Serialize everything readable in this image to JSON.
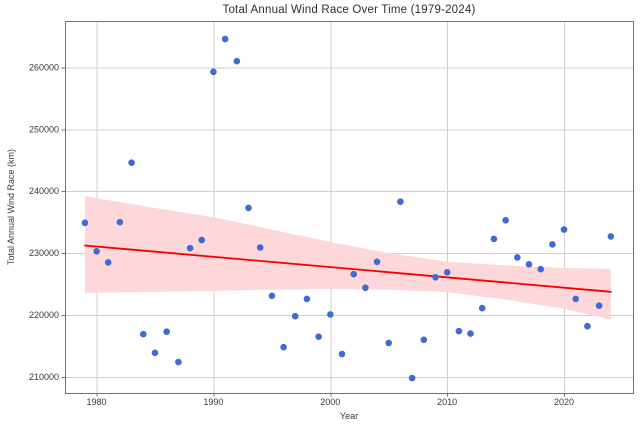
{
  "chart_data": {
    "type": "scatter",
    "title": "Total Annual Wind Race Over Time (1979-2024)",
    "xlabel": "Year",
    "ylabel": "Total Annual Wind Race (km)",
    "xlim": [
      1977.3,
      2025.9
    ],
    "ylim": [
      207400,
      267500
    ],
    "xticks": [
      1980,
      1990,
      2000,
      2010,
      2020
    ],
    "yticks": [
      210000,
      220000,
      230000,
      240000,
      250000,
      260000
    ],
    "grid": true,
    "legend": "none",
    "series": [
      {
        "name": "annual-total-points",
        "type": "scatter",
        "x": [
          1979,
          1980,
          1981,
          1982,
          1983,
          1984,
          1985,
          1986,
          1987,
          1988,
          1989,
          1990,
          1991,
          1992,
          1993,
          1994,
          1995,
          1996,
          1997,
          1998,
          1999,
          2000,
          2001,
          2002,
          2003,
          2004,
          2005,
          2006,
          2007,
          2008,
          2009,
          2010,
          2011,
          2012,
          2013,
          2014,
          2015,
          2016,
          2017,
          2018,
          2019,
          2020,
          2021,
          2022,
          2023,
          2024
        ],
        "y": [
          234900,
          230300,
          228500,
          235000,
          244600,
          216900,
          213900,
          217300,
          212400,
          230800,
          232100,
          259300,
          264600,
          261000,
          237300,
          230900,
          223100,
          214800,
          219800,
          222600,
          216500,
          220100,
          213700,
          226600,
          224400,
          228600,
          215500,
          238300,
          209800,
          216000,
          226100,
          226900,
          217400,
          217000,
          221100,
          232300,
          235300,
          229300,
          228200,
          227400,
          231400,
          233800,
          222600,
          218200,
          221500,
          232700
        ]
      },
      {
        "name": "linear-trend",
        "type": "line",
        "x": [
          1979,
          2024
        ],
        "y": [
          231230,
          223750
        ]
      },
      {
        "name": "confidence-band",
        "type": "area",
        "x": [
          1979,
          1984,
          1990,
          1995,
          2000,
          2005,
          2010,
          2015,
          2020,
          2024
        ],
        "upper": [
          239200,
          237600,
          235800,
          233800,
          231800,
          230000,
          228600,
          228000,
          227600,
          227450
        ],
        "lower": [
          223600,
          223700,
          223900,
          224100,
          224200,
          224100,
          223700,
          222500,
          221000,
          219250
        ]
      }
    ],
    "colors": {
      "points": "#3e6ad1",
      "trend_line": "#f50000",
      "ci_band": "#fdd7d9",
      "grid": "#cfcfcf",
      "frame": "#707070",
      "tick_text": "#3a3a3a"
    }
  }
}
